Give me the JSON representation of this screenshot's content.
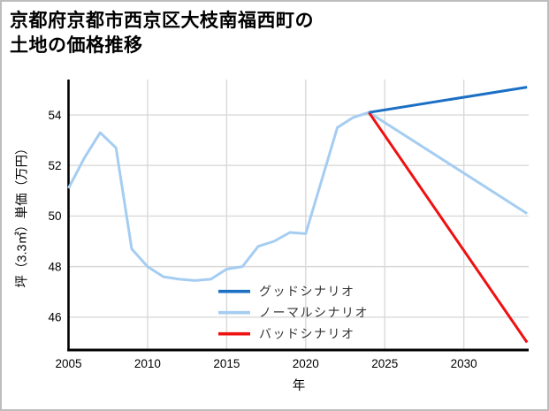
{
  "page": {
    "background": "#ffffff",
    "border_color": "#bdbdbd"
  },
  "title": {
    "line1": "京都府京都市西京区大枝南福西町の",
    "line2": "土地の価格推移"
  },
  "chart_data": {
    "type": "line",
    "title": "京都府京都市西京区大枝南福西町の土地の価格推移",
    "xlabel": "年",
    "ylabel": "坪（3.3㎡）単価（万円）",
    "xlim": [
      2005,
      2034.1
    ],
    "ylim": [
      44.7,
      55.4
    ],
    "xticks": [
      2005,
      2010,
      2015,
      2020,
      2025,
      2030
    ],
    "yticks": [
      46,
      48,
      50,
      52,
      54
    ],
    "grid": true,
    "grid_color": "#d9d9d9",
    "spine_color": "#000000",
    "legend_position": "inside lower right",
    "series": [
      {
        "name": "グッドシナリオ",
        "color": "#1b6fc4",
        "points": [
          [
            2024,
            54.1
          ],
          [
            2034,
            55.1
          ]
        ]
      },
      {
        "name": "ノーマルシナリオ",
        "color": "#a5cdf2",
        "points": [
          [
            2005,
            51.1
          ],
          [
            2006,
            52.3
          ],
          [
            2007,
            53.3
          ],
          [
            2008,
            52.7
          ],
          [
            2009,
            48.7
          ],
          [
            2010,
            48.0
          ],
          [
            2011,
            47.6
          ],
          [
            2012,
            47.5
          ],
          [
            2013,
            47.45
          ],
          [
            2014,
            47.5
          ],
          [
            2015,
            47.9
          ],
          [
            2016,
            48.0
          ],
          [
            2017,
            48.8
          ],
          [
            2018,
            49.0
          ],
          [
            2019,
            49.35
          ],
          [
            2020,
            49.3
          ],
          [
            2021,
            51.4
          ],
          [
            2022,
            53.5
          ],
          [
            2023,
            53.9
          ],
          [
            2024,
            54.1
          ],
          [
            2034,
            50.1
          ]
        ]
      },
      {
        "name": "バッドシナリオ",
        "color": "#ef1010",
        "points": [
          [
            2024,
            54.1
          ],
          [
            2034,
            45.0
          ]
        ]
      }
    ],
    "draw_order": [
      1,
      2,
      0
    ]
  }
}
